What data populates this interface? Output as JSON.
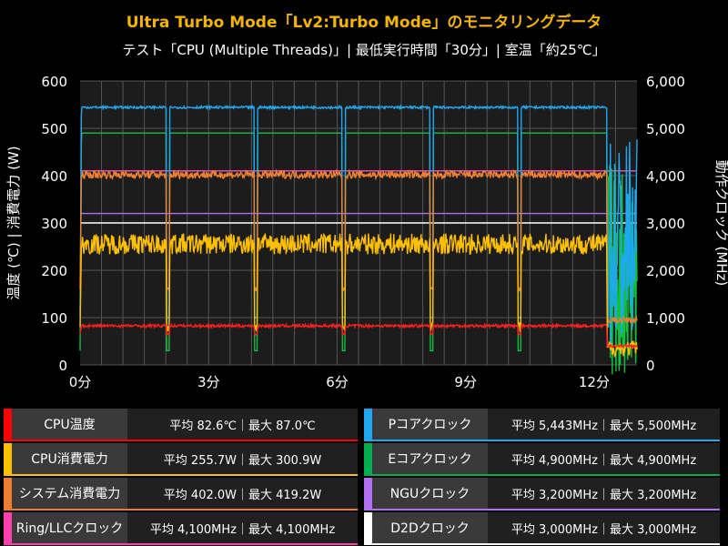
{
  "header": {
    "title": "Ultra Turbo Mode「Lv2:Turbo Mode」のモニタリングデータ",
    "subtitle": "テスト「CPU (Multiple Threads)」| 最低実行時間「30分」| 室温「約25℃」"
  },
  "chart_data": {
    "type": "line",
    "xlabel": "",
    "ylabel_left": "温度 (℃) | 消費電力 (W)",
    "ylabel_right": "動作クロック (MHz)",
    "x_ticks": [
      "0分",
      "3分",
      "6分",
      "9分",
      "12分"
    ],
    "x_tick_values": [
      0,
      3,
      6,
      9,
      12
    ],
    "xlim": [
      0,
      13
    ],
    "ylim_left": [
      0,
      600
    ],
    "y_ticks_left": [
      "0",
      "100",
      "200",
      "300",
      "400",
      "500",
      "600"
    ],
    "ylim_right": [
      0,
      6000
    ],
    "y_ticks_right": [
      "0",
      "1,000",
      "2,000",
      "3,000",
      "4,000",
      "5,000",
      "6,000"
    ],
    "grid": true,
    "dips_at_minutes": [
      2.05,
      4.1,
      6.15,
      8.2,
      10.25
    ],
    "series": [
      {
        "name": "CPU温度",
        "axis": "left",
        "color": "#ff2020",
        "typical": 82.6,
        "dip": 65,
        "end": 40
      },
      {
        "name": "CPU消費電力",
        "axis": "left",
        "color": "#ffc000",
        "typical": 255.7,
        "dip": 80,
        "end": 35
      },
      {
        "name": "システム消費電力",
        "axis": "left",
        "color": "#f08030",
        "typical": 402.0,
        "dip": 160,
        "end": 95
      },
      {
        "name": "Ring/LLCクロック",
        "axis": "right",
        "color": "#ff4fc0",
        "typical": 4100,
        "dip": 4100,
        "end": 4100
      },
      {
        "name": "Pコアクロック",
        "axis": "right",
        "color": "#1ea8f0",
        "typical": 5443,
        "dip": 1000,
        "end": 2500
      },
      {
        "name": "Eコアクロック",
        "axis": "right",
        "color": "#10c040",
        "typical": 4900,
        "dip": 300,
        "end": 2000
      },
      {
        "name": "NGUクロック",
        "axis": "right",
        "color": "#b070f0",
        "typical": 3200,
        "dip": 3200,
        "end": 3200
      },
      {
        "name": "D2Dクロック",
        "axis": "right",
        "color": "#ffffff",
        "typical": 3000,
        "dip": 3000,
        "end": 3000
      }
    ]
  },
  "legend": {
    "left": [
      {
        "name": "CPU温度",
        "value": "平均 82.6℃｜最大 87.0℃",
        "color": "#ff0000"
      },
      {
        "name": "CPU消費電力",
        "value": "平均 255.7W｜最大 300.9W",
        "color": "#ffc000"
      },
      {
        "name": "システム消費電力",
        "value": "平均 402.0W｜最大 419.2W",
        "color": "#ed7d31"
      },
      {
        "name": "Ring/LLCクロック",
        "value": "平均 4,100MHz｜最大 4,100MHz",
        "color": "#ff3fb0"
      }
    ],
    "right": [
      {
        "name": "Pコアクロック",
        "value": "平均 5,443MHz｜最大 5,500MHz",
        "color": "#1ea8f0"
      },
      {
        "name": "Eコアクロック",
        "value": "平均 4,900MHz｜最大 4,900MHz",
        "color": "#00b050"
      },
      {
        "name": "NGUクロック",
        "value": "平均 3,200MHz｜最大 3,200MHz",
        "color": "#b070f0"
      },
      {
        "name": "D2Dクロック",
        "value": "平均 3,000MHz｜最大 3,000MHz",
        "color": "#ffffff"
      }
    ]
  }
}
